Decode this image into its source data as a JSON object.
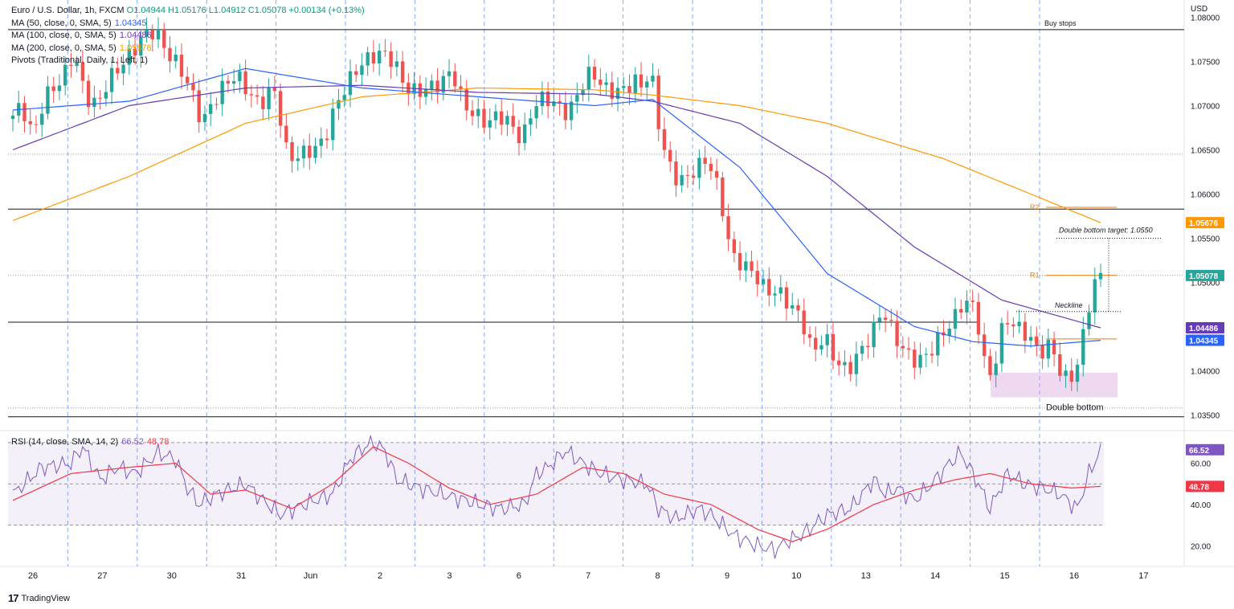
{
  "legend": {
    "symbol_line": "Euro / U.S. Dollar, 1h, FXCM",
    "ohlc": "O1.04944 H1.05176 L1.04912 C1.05078 +0.00134 (+0.13%)",
    "ma50_label": "MA (50, close, 0, SMA, 5)",
    "ma50_value": "1.04345",
    "ma100_label": "MA (100, close, 0, SMA, 5)",
    "ma100_value": "1.04486",
    "ma200_label": "MA (200, close, 0, SMA, 5)",
    "ma200_value": "1.05676",
    "pivots_label": "Pivots (Traditional, Daily, 1, Left, 1)"
  },
  "rsi_legend": {
    "label": "RSI (14, close, SMA, 14, 2)",
    "rsi_value": "66.52",
    "ma_value": "48.78"
  },
  "currency": "USD",
  "brand": {
    "logo": "17",
    "name": "TradingView"
  },
  "colors": {
    "up": "#26a69a",
    "down": "#ef5350",
    "ma50": "#2962ff",
    "ma100": "#673ab7",
    "ma200": "#ff9800",
    "rsi": "#7e57c2",
    "rsi_ma": "#f23645",
    "pivot": "#f57c00"
  },
  "chart_data": [
    {
      "type": "line",
      "title": "Euro / U.S. Dollar, 1h, FXCM",
      "ylim": [
        1.0335,
        1.0815
      ],
      "y_ticks": [
        "1.08000",
        "1.07500",
        "1.07000",
        "1.06500",
        "1.06000",
        "1.05500",
        "1.05000",
        "1.04500",
        "1.04000",
        "1.03500"
      ],
      "y_tick_values": [
        1.08,
        1.075,
        1.07,
        1.065,
        1.06,
        1.055,
        1.05,
        1.045,
        1.04,
        1.035
      ],
      "x_ticks": [
        "26",
        "27",
        "30",
        "31",
        "Jun",
        "2",
        "3",
        "6",
        "7",
        "8",
        "9",
        "10",
        "13",
        "14",
        "15",
        "16",
        "17"
      ],
      "price_path": [
        [
          0,
          1.0685
        ],
        [
          2,
          1.07
        ],
        [
          4,
          1.0665
        ],
        [
          6,
          1.071
        ],
        [
          9,
          1.073
        ],
        [
          11,
          1.076
        ],
        [
          13,
          1.071
        ],
        [
          15,
          1.07
        ],
        [
          17,
          1.073
        ],
        [
          19,
          1.0745
        ],
        [
          21,
          1.076
        ],
        [
          23,
          1.078
        ],
        [
          25,
          1.0785
        ],
        [
          27,
          1.076
        ],
        [
          29,
          1.0745
        ],
        [
          31,
          1.072
        ],
        [
          33,
          1.068
        ],
        [
          35,
          1.0705
        ],
        [
          37,
          1.0725
        ],
        [
          39,
          1.0735
        ],
        [
          41,
          1.0715
        ],
        [
          43,
          1.07
        ],
        [
          45,
          1.072
        ],
        [
          46,
          1.071
        ],
        [
          47,
          1.066
        ],
        [
          48,
          1.064
        ],
        [
          50,
          1.0645
        ],
        [
          52,
          1.065
        ],
        [
          54,
          1.066
        ],
        [
          56,
          1.07
        ],
        [
          58,
          1.0725
        ],
        [
          60,
          1.0745
        ],
        [
          62,
          1.0755
        ],
        [
          64,
          1.076
        ],
        [
          66,
          1.075
        ],
        [
          68,
          1.072
        ],
        [
          70,
          1.0715
        ],
        [
          72,
          1.072
        ],
        [
          74,
          1.0725
        ],
        [
          76,
          1.074
        ],
        [
          78,
          1.07
        ],
        [
          80,
          1.069
        ],
        [
          82,
          1.068
        ],
        [
          84,
          1.069
        ],
        [
          86,
          1.068
        ],
        [
          88,
          1.066
        ],
        [
          90,
          1.07
        ],
        [
          92,
          1.071
        ],
        [
          94,
          1.07
        ],
        [
          96,
          1.069
        ],
        [
          98,
          1.072
        ],
        [
          100,
          1.074
        ],
        [
          102,
          1.072
        ],
        [
          104,
          1.0715
        ],
        [
          106,
          1.072
        ],
        [
          108,
          1.073
        ],
        [
          109,
          1.0715
        ],
        [
          110,
          1.075
        ],
        [
          111,
          1.07
        ],
        [
          112,
          1.066
        ],
        [
          114,
          1.062
        ],
        [
          116,
          1.0615
        ],
        [
          118,
          1.063
        ],
        [
          120,
          1.064
        ],
        [
          122,
          1.06
        ],
        [
          124,
          1.053
        ],
        [
          126,
          1.052
        ],
        [
          128,
          1.051
        ],
        [
          130,
          1.049
        ],
        [
          132,
          1.049
        ],
        [
          134,
          1.0475
        ],
        [
          136,
          1.046
        ],
        [
          138,
          1.042
        ],
        [
          140,
          1.044
        ],
        [
          142,
          1.041
        ],
        [
          144,
          1.04
        ],
        [
          146,
          1.042
        ],
        [
          148,
          1.044
        ],
        [
          150,
          1.047
        ],
        [
          152,
          1.044
        ],
        [
          154,
          1.042
        ],
        [
          156,
          1.041
        ],
        [
          158,
          1.042
        ],
        [
          160,
          1.044
        ],
        [
          162,
          1.0455
        ],
        [
          164,
          1.048
        ],
        [
          166,
          1.047
        ],
        [
          167,
          1.043
        ],
        [
          168,
          1.039
        ],
        [
          169,
          1.04
        ],
        [
          171,
          1.046
        ],
        [
          173,
          1.045
        ],
        [
          175,
          1.044
        ],
        [
          177,
          1.042
        ],
        [
          179,
          1.043
        ],
        [
          181,
          1.039
        ],
        [
          183,
          1.0395
        ],
        [
          184,
          1.042
        ],
        [
          185,
          1.046
        ],
        [
          186,
          1.049
        ],
        [
          187,
          1.0508
        ]
      ],
      "ma50": [
        [
          0,
          1.0695
        ],
        [
          20,
          1.0705
        ],
        [
          40,
          1.0742
        ],
        [
          60,
          1.072
        ],
        [
          80,
          1.071
        ],
        [
          100,
          1.07
        ],
        [
          110,
          1.0707
        ],
        [
          125,
          1.063
        ],
        [
          140,
          1.051
        ],
        [
          155,
          1.045
        ],
        [
          165,
          1.0433
        ],
        [
          175,
          1.0428
        ],
        [
          187,
          1.04345
        ]
      ],
      "ma100": [
        [
          0,
          1.065
        ],
        [
          20,
          1.07
        ],
        [
          40,
          1.072
        ],
        [
          60,
          1.0723
        ],
        [
          80,
          1.0715
        ],
        [
          100,
          1.0713
        ],
        [
          110,
          1.0705
        ],
        [
          125,
          1.068
        ],
        [
          140,
          1.062
        ],
        [
          155,
          1.054
        ],
        [
          170,
          1.048
        ],
        [
          187,
          1.04486
        ]
      ],
      "ma200": [
        [
          0,
          1.057
        ],
        [
          20,
          1.062
        ],
        [
          40,
          1.068
        ],
        [
          60,
          1.071
        ],
        [
          80,
          1.072
        ],
        [
          100,
          1.0718
        ],
        [
          110,
          1.0712
        ],
        [
          125,
          1.07
        ],
        [
          140,
          1.068
        ],
        [
          160,
          1.064
        ],
        [
          175,
          1.06
        ],
        [
          187,
          1.05676
        ]
      ],
      "levels": [
        {
          "label": "Buy stops",
          "value": 1.0786
        },
        {
          "label": "",
          "value": 1.0583
        },
        {
          "label": "",
          "value": 1.0455
        },
        {
          "label": "",
          "value": 1.0348
        }
      ],
      "pivots": [
        {
          "label": "R2",
          "value": 1.0585
        },
        {
          "label": "R1",
          "value": 1.0508
        },
        {
          "label": "P",
          "value": 1.0436
        }
      ],
      "annotations": {
        "neckline": "Neckline",
        "neckline_value": 1.0467,
        "double_bottom": "Double bottom",
        "double_bottom_zone": [
          1.037,
          1.0398
        ],
        "target": "Double bottom target: 1.0550",
        "target_value": 1.055
      },
      "price_labels": [
        {
          "text": "1.05676",
          "value": 1.05676,
          "color": "#ff9800"
        },
        {
          "text": "1.05078",
          "value": 1.05078,
          "color": "#26a69a"
        },
        {
          "text": "1.04486",
          "value": 1.04486,
          "color": "#673ab7"
        },
        {
          "text": "1.04345",
          "value": 1.04345,
          "color": "#2962ff"
        }
      ]
    },
    {
      "type": "line",
      "title": "RSI (14, close, SMA, 14, 2)",
      "ylim": [
        10,
        75
      ],
      "y_ticks": [
        "60.00",
        "40.00",
        "20.00"
      ],
      "y_tick_values": [
        60,
        40,
        20
      ],
      "bands": [
        70,
        50,
        30
      ],
      "rsi": [
        [
          0,
          45
        ],
        [
          5,
          58
        ],
        [
          10,
          60
        ],
        [
          12,
          68
        ],
        [
          15,
          52
        ],
        [
          18,
          58
        ],
        [
          21,
          55
        ],
        [
          25,
          65
        ],
        [
          28,
          62
        ],
        [
          30,
          48
        ],
        [
          32,
          40
        ],
        [
          35,
          45
        ],
        [
          40,
          50
        ],
        [
          43,
          42
        ],
        [
          46,
          35
        ],
        [
          50,
          40
        ],
        [
          55,
          45
        ],
        [
          58,
          62
        ],
        [
          60,
          67
        ],
        [
          62,
          70
        ],
        [
          64,
          66
        ],
        [
          66,
          52
        ],
        [
          70,
          48
        ],
        [
          75,
          44
        ],
        [
          78,
          42
        ],
        [
          80,
          40
        ],
        [
          84,
          38
        ],
        [
          88,
          40
        ],
        [
          90,
          55
        ],
        [
          92,
          58
        ],
        [
          95,
          66
        ],
        [
          98,
          60
        ],
        [
          101,
          55
        ],
        [
          105,
          52
        ],
        [
          109,
          50
        ],
        [
          111,
          38
        ],
        [
          114,
          33
        ],
        [
          118,
          38
        ],
        [
          120,
          35
        ],
        [
          124,
          25
        ],
        [
          128,
          20
        ],
        [
          131,
          18
        ],
        [
          133,
          22
        ],
        [
          136,
          26
        ],
        [
          140,
          35
        ],
        [
          144,
          38
        ],
        [
          148,
          52
        ],
        [
          150,
          45
        ],
        [
          152,
          48
        ],
        [
          155,
          42
        ],
        [
          158,
          50
        ],
        [
          161,
          60
        ],
        [
          163,
          65
        ],
        [
          166,
          50
        ],
        [
          168,
          38
        ],
        [
          171,
          55
        ],
        [
          174,
          50
        ],
        [
          177,
          48
        ],
        [
          180,
          45
        ],
        [
          183,
          38
        ],
        [
          185,
          55
        ],
        [
          187,
          66.52
        ]
      ],
      "rsi_ma": [
        [
          0,
          42
        ],
        [
          10,
          55
        ],
        [
          20,
          58
        ],
        [
          28,
          60
        ],
        [
          34,
          45
        ],
        [
          40,
          47
        ],
        [
          48,
          38
        ],
        [
          55,
          50
        ],
        [
          62,
          68
        ],
        [
          68,
          60
        ],
        [
          75,
          48
        ],
        [
          82,
          40
        ],
        [
          90,
          45
        ],
        [
          98,
          58
        ],
        [
          105,
          55
        ],
        [
          112,
          45
        ],
        [
          120,
          40
        ],
        [
          128,
          28
        ],
        [
          134,
          22
        ],
        [
          140,
          28
        ],
        [
          148,
          40
        ],
        [
          155,
          47
        ],
        [
          162,
          52
        ],
        [
          168,
          55
        ],
        [
          175,
          50
        ],
        [
          182,
          48
        ],
        [
          187,
          48.78
        ]
      ],
      "price_labels": [
        {
          "text": "66.52",
          "value": 66.52,
          "color": "#7e57c2"
        },
        {
          "text": "48.78",
          "value": 48.78,
          "color": "#f23645"
        }
      ]
    }
  ]
}
